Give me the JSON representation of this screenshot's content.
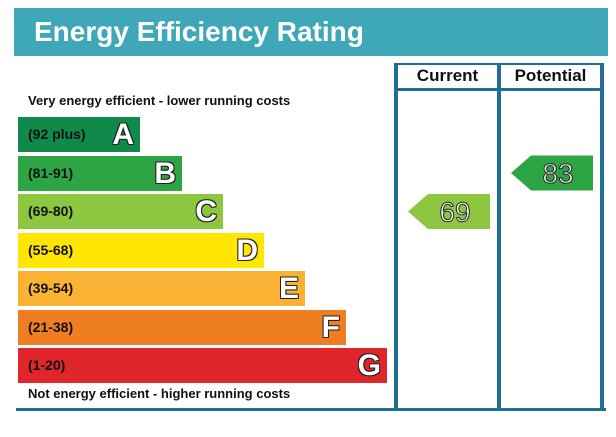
{
  "title": "Energy Efficiency Rating",
  "columns": {
    "current": "Current",
    "potential": "Potential"
  },
  "captions": {
    "top": "Very energy efficient - lower running costs",
    "bottom": "Not energy efficient - higher running costs"
  },
  "colors": {
    "header": "#3fa8b8",
    "frame": "#1e6f93"
  },
  "chart_data": {
    "type": "bar",
    "title": "Energy Efficiency Rating",
    "bands": [
      {
        "range": "(92 plus)",
        "letter": "A",
        "color": "#0f8a4a"
      },
      {
        "range": "(81-91)",
        "letter": "B",
        "color": "#2ea544"
      },
      {
        "range": "(69-80)",
        "letter": "C",
        "color": "#8dc63f"
      },
      {
        "range": "(55-68)",
        "letter": "D",
        "color": "#ffe600"
      },
      {
        "range": "(39-54)",
        "letter": "E",
        "color": "#f9b233"
      },
      {
        "range": "(21-38)",
        "letter": "F",
        "color": "#ef7e22"
      },
      {
        "range": "(1-20)",
        "letter": "G",
        "color": "#e0262b"
      }
    ],
    "current": {
      "value": 69,
      "band": "C",
      "color": "#8dc63f"
    },
    "potential": {
      "value": 83,
      "band": "B",
      "color": "#2ea544"
    }
  }
}
